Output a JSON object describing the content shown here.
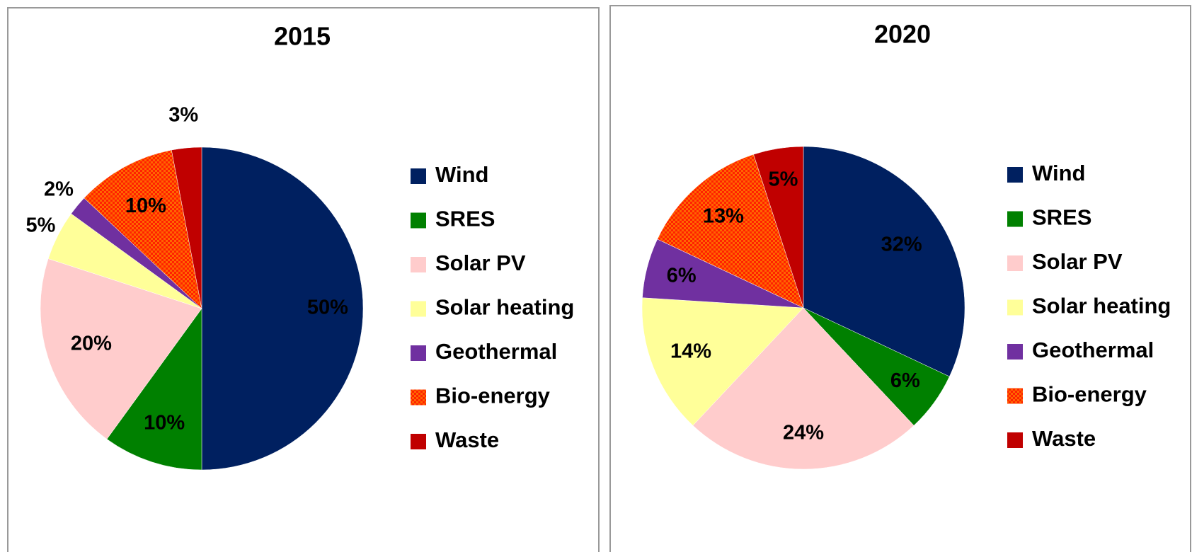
{
  "chart_data": [
    {
      "type": "pie",
      "title": "2015",
      "categories": [
        "Wind",
        "SRES",
        "Solar PV",
        "Solar heating",
        "Geothermal",
        "Bio-energy",
        "Waste"
      ],
      "values": [
        50,
        10,
        20,
        5,
        2,
        10,
        3
      ],
      "value_labels": [
        "50%",
        "10%",
        "20%",
        "5%",
        "2%",
        "10%",
        "3%"
      ],
      "colors": [
        "#002060",
        "#008000",
        "#ffcccc",
        "#ffff99",
        "#7030a0",
        "#ff6600",
        "#c00000"
      ],
      "legend": "right"
    },
    {
      "type": "pie",
      "title": "2020",
      "categories": [
        "Wind",
        "SRES",
        "Solar PV",
        "Solar heating",
        "Geothermal",
        "Bio-energy",
        "Waste"
      ],
      "values": [
        32,
        6,
        24,
        14,
        6,
        13,
        5
      ],
      "value_labels": [
        "32%",
        "6%",
        "24%",
        "14%",
        "6%",
        "13%",
        "5%"
      ],
      "colors": [
        "#002060",
        "#008000",
        "#ffcccc",
        "#ffff99",
        "#7030a0",
        "#ff6600",
        "#c00000"
      ],
      "legend": "right"
    }
  ]
}
